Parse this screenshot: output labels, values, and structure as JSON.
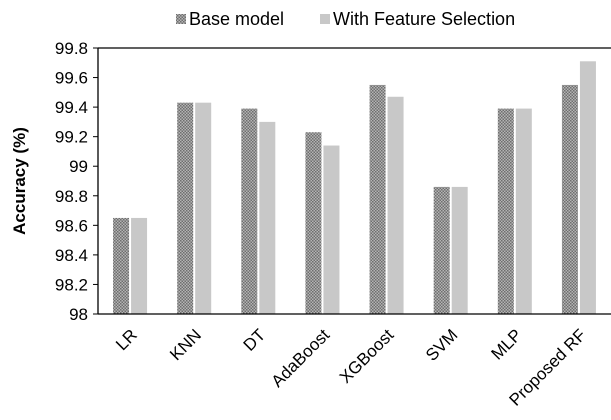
{
  "chart_data": {
    "type": "bar",
    "title": "",
    "xlabel": "",
    "ylabel": "Accuracy (%)",
    "ylim": [
      98,
      99.8
    ],
    "yticks": [
      "98",
      "98.2",
      "98.4",
      "98.6",
      "98.8",
      "99",
      "99.2",
      "99.4",
      "99.6",
      "99.8"
    ],
    "categories": [
      "LR",
      "KNN",
      "DT",
      "AdaBoost",
      "XGBoost",
      "SVM",
      "MLP",
      "Proposed RF"
    ],
    "series": [
      {
        "name": "Base model",
        "color": "#8c8c8c",
        "pattern": "dotted",
        "values": [
          98.65,
          99.43,
          99.39,
          99.23,
          99.55,
          98.86,
          99.39,
          99.55
        ]
      },
      {
        "name": "With Feature Selection",
        "color": "#c8c8c8",
        "pattern": "solid",
        "values": [
          98.65,
          99.43,
          99.3,
          99.14,
          99.47,
          98.86,
          99.39,
          99.71
        ]
      }
    ],
    "grid": false,
    "legend_position": "top"
  }
}
